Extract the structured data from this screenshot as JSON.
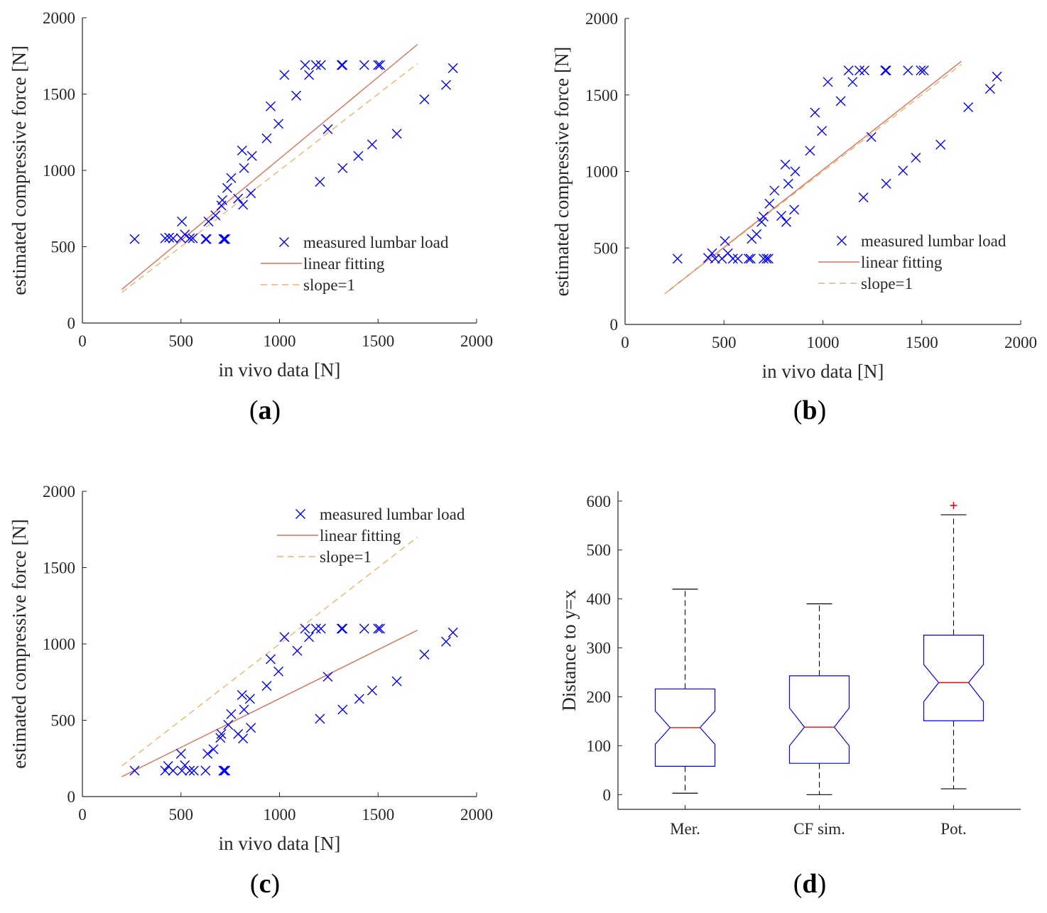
{
  "chart_data": [
    {
      "panel": "(a)",
      "caption_letter": "a",
      "type": "scatter",
      "xlabel": "in vivo data [N]",
      "ylabel": "estimated compressive force [N]",
      "xlim": [
        0,
        2000
      ],
      "ylim": [
        0,
        2000
      ],
      "xticks": [
        0,
        500,
        1000,
        1500,
        2000
      ],
      "yticks": [
        0,
        500,
        1000,
        1500,
        2000
      ],
      "legend_position": "lower-right",
      "series": [
        {
          "name": "measured lumbar load",
          "kind": "marker-x",
          "color": "#0000ff",
          "points": [
            [
              265,
              550
            ],
            [
              420,
              555
            ],
            [
              440,
              560
            ],
            [
              460,
              555
            ],
            [
              500,
              555
            ],
            [
              505,
              665
            ],
            [
              520,
              580
            ],
            [
              545,
              555
            ],
            [
              560,
              555
            ],
            [
              625,
              550
            ],
            [
              630,
              550
            ],
            [
              640,
              665
            ],
            [
              675,
              705
            ],
            [
              705,
              770
            ],
            [
              710,
              805
            ],
            [
              715,
              550
            ],
            [
              720,
              550
            ],
            [
              725,
              550
            ],
            [
              735,
              885
            ],
            [
              755,
              950
            ],
            [
              790,
              815
            ],
            [
              810,
              1130
            ],
            [
              815,
              775
            ],
            [
              820,
              1015
            ],
            [
              855,
              850
            ],
            [
              860,
              1095
            ],
            [
              935,
              1210
            ],
            [
              955,
              1420
            ],
            [
              995,
              1305
            ],
            [
              1025,
              1625
            ],
            [
              1085,
              1490
            ],
            [
              1130,
              1690
            ],
            [
              1150,
              1625
            ],
            [
              1185,
              1690
            ],
            [
              1205,
              925
            ],
            [
              1210,
              1690
            ],
            [
              1245,
              1270
            ],
            [
              1315,
              1690
            ],
            [
              1320,
              1690
            ],
            [
              1320,
              1015
            ],
            [
              1400,
              1095
            ],
            [
              1430,
              1690
            ],
            [
              1470,
              1170
            ],
            [
              1500,
              1690
            ],
            [
              1510,
              1690
            ],
            [
              1595,
              1240
            ],
            [
              1735,
              1465
            ],
            [
              1845,
              1560
            ],
            [
              1880,
              1670
            ]
          ]
        },
        {
          "name": "linear fitting",
          "kind": "line",
          "color": "#d9705a",
          "x": [
            200,
            1700
          ],
          "y": [
            220,
            1825
          ]
        },
        {
          "name": "slope=1",
          "kind": "dashed-line",
          "color": "#edb26b",
          "x": [
            200,
            1700
          ],
          "y": [
            200,
            1700
          ]
        }
      ]
    },
    {
      "panel": "(b)",
      "caption_letter": "b",
      "type": "scatter",
      "xlabel": "in vivo data [N]",
      "ylabel": "estimated compressive force [N]",
      "xlim": [
        0,
        2000
      ],
      "ylim": [
        0,
        2000
      ],
      "xticks": [
        0,
        500,
        1000,
        1500,
        2000
      ],
      "yticks": [
        0,
        500,
        1000,
        1500,
        2000
      ],
      "legend_position": "lower-right",
      "series": [
        {
          "name": "measured lumbar load",
          "kind": "marker-x",
          "color": "#0000ff",
          "points": [
            [
              265,
              430
            ],
            [
              420,
              435
            ],
            [
              440,
              465
            ],
            [
              455,
              430
            ],
            [
              490,
              430
            ],
            [
              505,
              545
            ],
            [
              520,
              465
            ],
            [
              545,
              430
            ],
            [
              570,
              430
            ],
            [
              625,
              430
            ],
            [
              635,
              430
            ],
            [
              640,
              560
            ],
            [
              665,
              590
            ],
            [
              690,
              670
            ],
            [
              700,
              430
            ],
            [
              715,
              430
            ],
            [
              725,
              430
            ],
            [
              700,
              705
            ],
            [
              730,
              790
            ],
            [
              755,
              875
            ],
            [
              790,
              710
            ],
            [
              810,
              1045
            ],
            [
              815,
              670
            ],
            [
              825,
              920
            ],
            [
              855,
              750
            ],
            [
              860,
              1000
            ],
            [
              935,
              1135
            ],
            [
              960,
              1385
            ],
            [
              995,
              1265
            ],
            [
              1025,
              1585
            ],
            [
              1090,
              1460
            ],
            [
              1130,
              1660
            ],
            [
              1150,
              1585
            ],
            [
              1185,
              1660
            ],
            [
              1205,
              830
            ],
            [
              1210,
              1660
            ],
            [
              1245,
              1225
            ],
            [
              1315,
              1660
            ],
            [
              1320,
              1660
            ],
            [
              1320,
              920
            ],
            [
              1405,
              1005
            ],
            [
              1430,
              1660
            ],
            [
              1470,
              1090
            ],
            [
              1495,
              1660
            ],
            [
              1510,
              1660
            ],
            [
              1595,
              1175
            ],
            [
              1735,
              1420
            ],
            [
              1845,
              1540
            ],
            [
              1880,
              1620
            ]
          ]
        },
        {
          "name": "linear fitting",
          "kind": "line",
          "color": "#d9705a",
          "x": [
            200,
            1700
          ],
          "y": [
            200,
            1720
          ]
        },
        {
          "name": "slope=1",
          "kind": "dashed-line",
          "color": "#edb26b",
          "x": [
            200,
            1700
          ],
          "y": [
            200,
            1700
          ]
        }
      ]
    },
    {
      "panel": "(c)",
      "caption_letter": "c",
      "type": "scatter",
      "xlabel": "in vivo data [N]",
      "ylabel": "estimated compressive force [N]",
      "xlim": [
        0,
        2000
      ],
      "ylim": [
        0,
        2000
      ],
      "xticks": [
        0,
        500,
        1000,
        1500,
        2000
      ],
      "yticks": [
        0,
        500,
        1000,
        1500,
        2000
      ],
      "legend_position": "top-right",
      "series": [
        {
          "name": "measured lumbar load",
          "kind": "marker-x",
          "color": "#0000ff",
          "points": [
            [
              265,
              170
            ],
            [
              420,
              170
            ],
            [
              435,
              200
            ],
            [
              460,
              170
            ],
            [
              500,
              280
            ],
            [
              505,
              170
            ],
            [
              520,
              205
            ],
            [
              545,
              170
            ],
            [
              565,
              170
            ],
            [
              625,
              170
            ],
            [
              635,
              280
            ],
            [
              665,
              310
            ],
            [
              700,
              385
            ],
            [
              705,
              410
            ],
            [
              715,
              170
            ],
            [
              720,
              170
            ],
            [
              725,
              170
            ],
            [
              740,
              470
            ],
            [
              755,
              540
            ],
            [
              790,
              410
            ],
            [
              810,
              665
            ],
            [
              815,
              380
            ],
            [
              820,
              570
            ],
            [
              850,
              640
            ],
            [
              855,
              450
            ],
            [
              935,
              725
            ],
            [
              955,
              900
            ],
            [
              995,
              820
            ],
            [
              1025,
              1045
            ],
            [
              1090,
              955
            ],
            [
              1130,
              1100
            ],
            [
              1150,
              1045
            ],
            [
              1185,
              1100
            ],
            [
              1205,
              510
            ],
            [
              1210,
              1100
            ],
            [
              1245,
              785
            ],
            [
              1315,
              1100
            ],
            [
              1320,
              1100
            ],
            [
              1320,
              570
            ],
            [
              1405,
              640
            ],
            [
              1430,
              1100
            ],
            [
              1470,
              695
            ],
            [
              1500,
              1100
            ],
            [
              1510,
              1100
            ],
            [
              1595,
              755
            ],
            [
              1735,
              930
            ],
            [
              1845,
              1015
            ],
            [
              1880,
              1075
            ]
          ]
        },
        {
          "name": "linear fitting",
          "kind": "line",
          "color": "#d9705a",
          "x": [
            200,
            1700
          ],
          "y": [
            130,
            1090
          ]
        },
        {
          "name": "slope=1",
          "kind": "dashed-line",
          "color": "#edb26b",
          "x": [
            200,
            1700
          ],
          "y": [
            200,
            1700
          ]
        }
      ]
    },
    {
      "panel": "(d)",
      "caption_letter": "d",
      "type": "box",
      "ylabel": "Distance to y=x",
      "categories": [
        "Mer.",
        "CF sim.",
        "Pot."
      ],
      "ylim": [
        -30,
        620
      ],
      "yticks": [
        0,
        100,
        200,
        300,
        400,
        500,
        600
      ],
      "box_color": "#0000ff",
      "median_color": "#ff0000",
      "whisker_color": "#000000",
      "boxes": [
        {
          "category": "Mer.",
          "whisker_low": 3,
          "q1": 58,
          "notch_low": 103,
          "median": 137,
          "notch_high": 171,
          "q3": 216,
          "whisker_high": 420,
          "outliers": []
        },
        {
          "category": "CF sim.",
          "whisker_low": 0,
          "q1": 64,
          "notch_low": 100,
          "median": 138,
          "notch_high": 177,
          "q3": 243,
          "whisker_high": 390,
          "outliers": []
        },
        {
          "category": "Pot.",
          "whisker_low": 12,
          "q1": 151,
          "notch_low": 190,
          "median": 229,
          "notch_high": 266,
          "q3": 326,
          "whisker_high": 572,
          "outliers": [
            591
          ]
        }
      ]
    }
  ]
}
